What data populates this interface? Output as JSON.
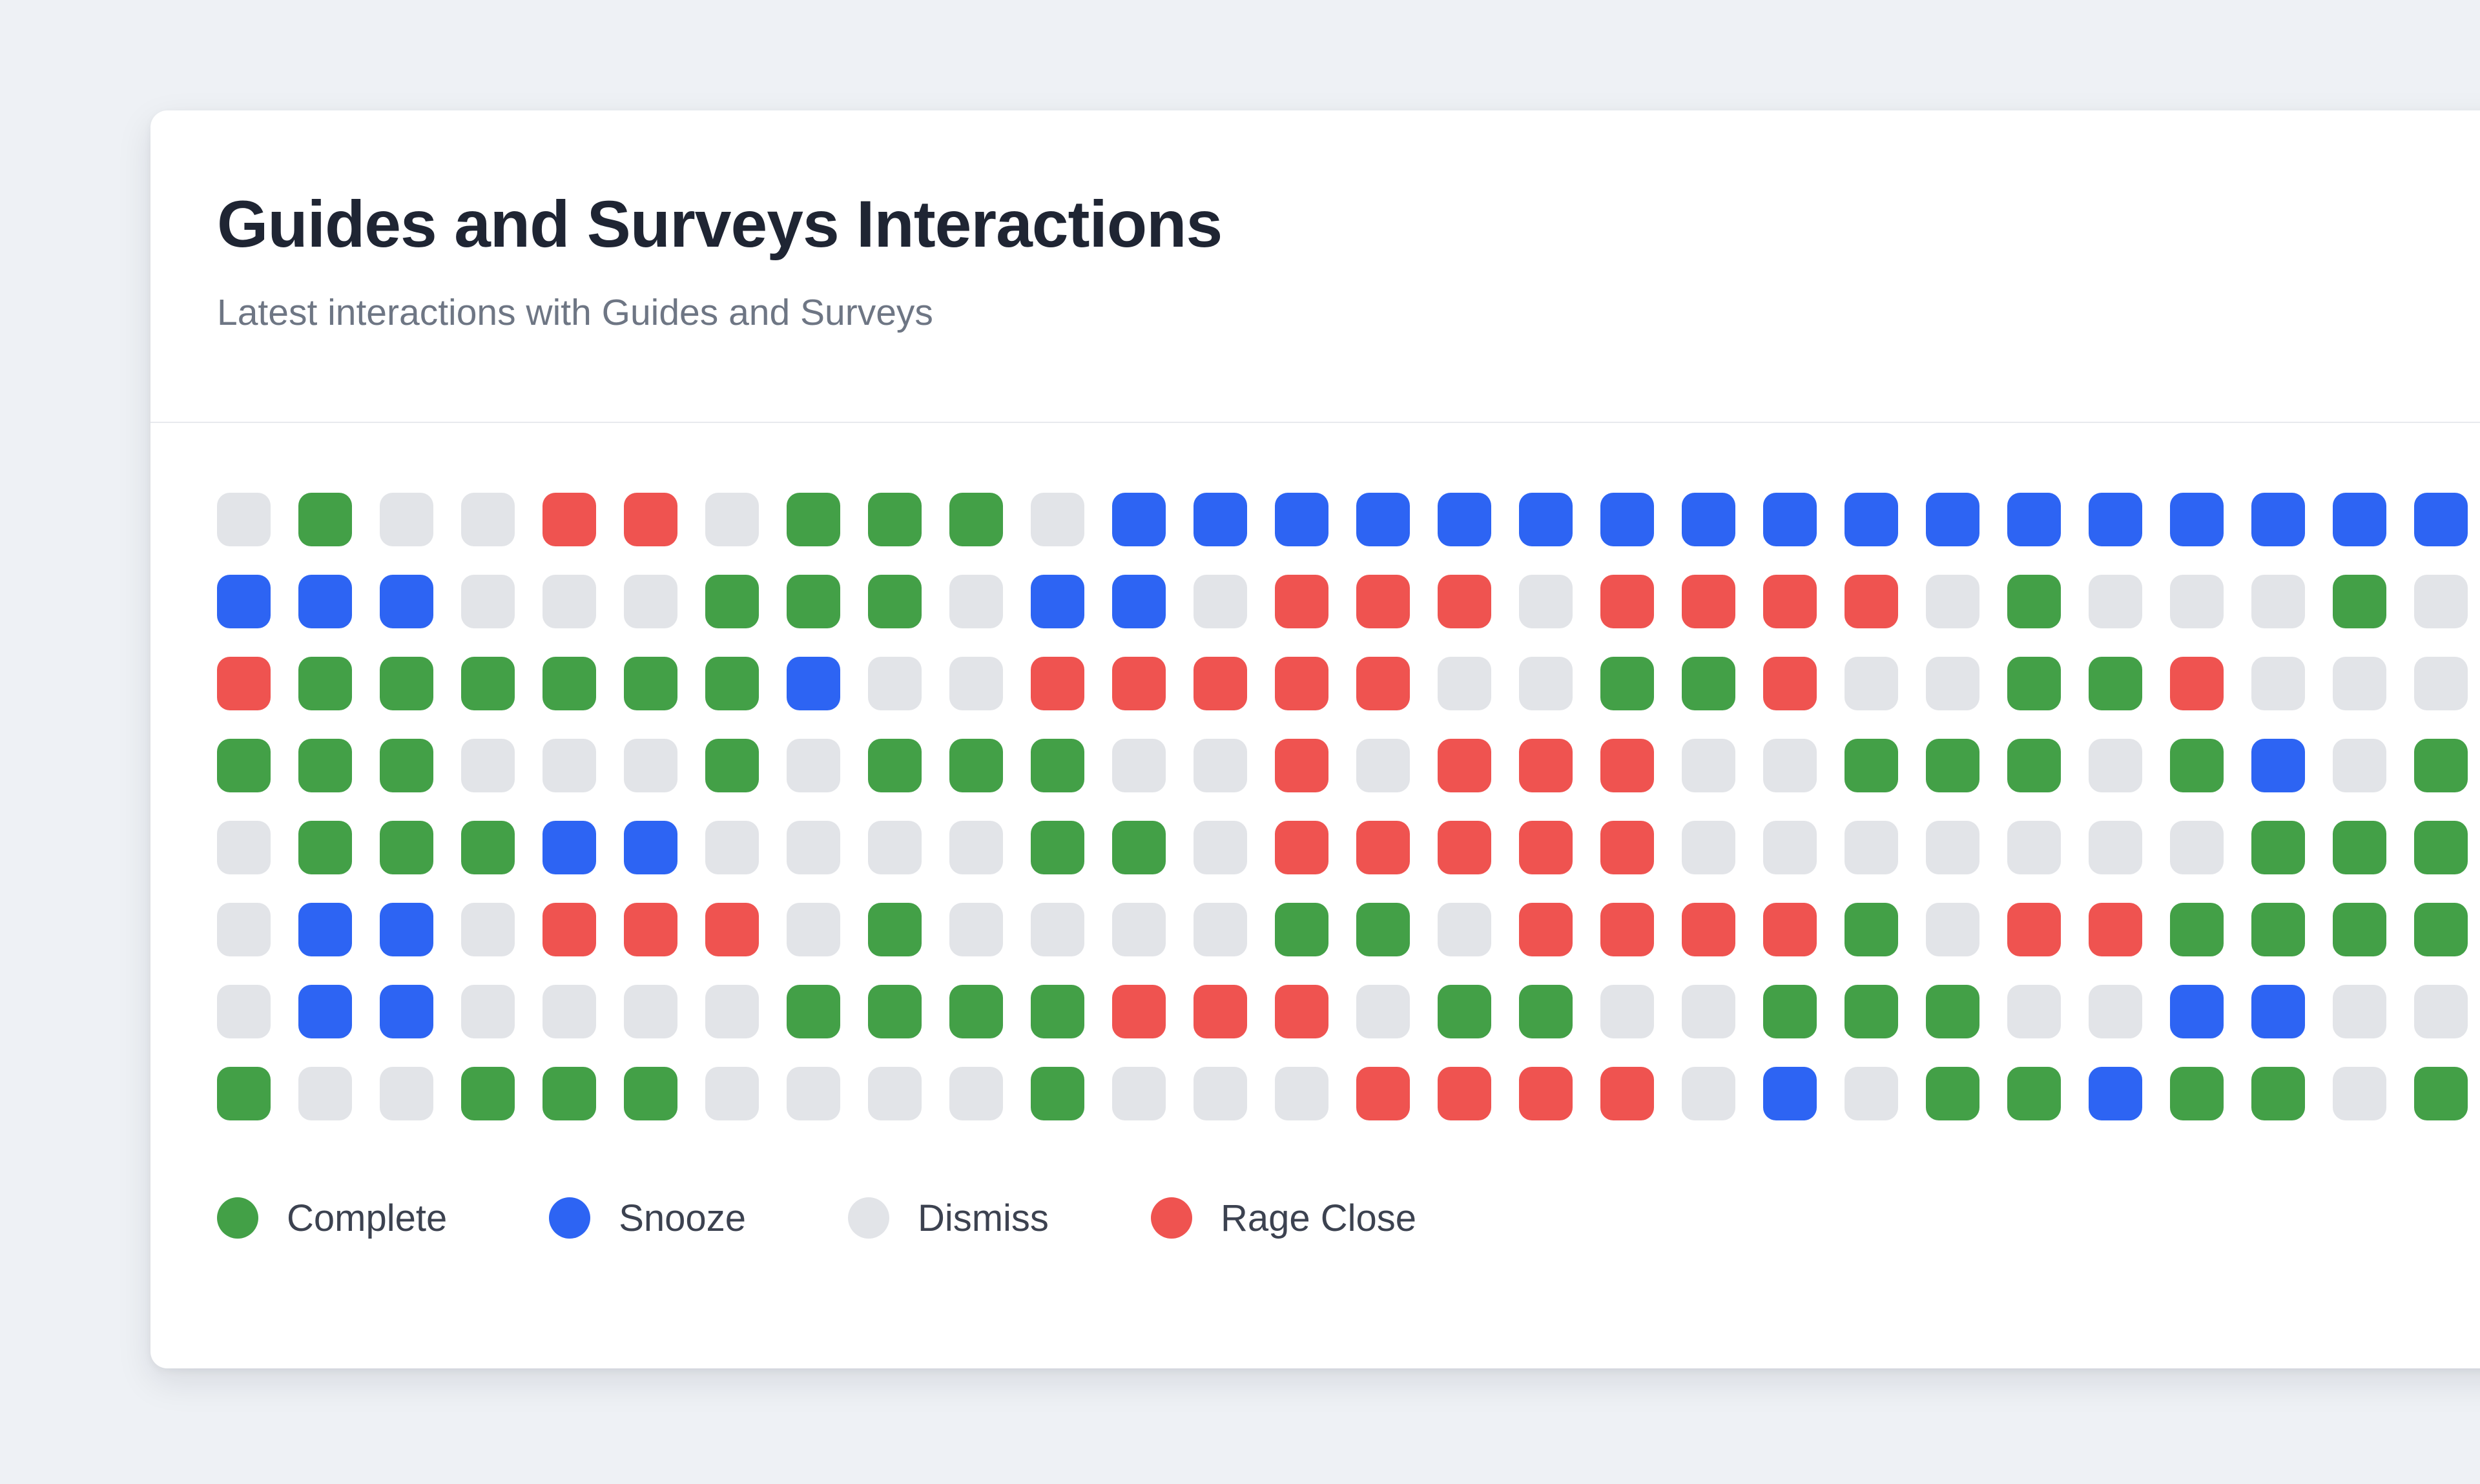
{
  "page": {
    "background_color": "#eef1f5"
  },
  "card": {
    "title": "Guides and Surveys Interactions",
    "subtitle": "Latest interactions with Guides and Surveys",
    "background_color": "#ffffff",
    "divider_color": "#e8eaee"
  },
  "legend": {
    "items": [
      {
        "label": "Complete",
        "code": "C",
        "color": "#43a047"
      },
      {
        "label": "Snooze",
        "code": "S",
        "color": "#2d64f3"
      },
      {
        "label": "Dismiss",
        "code": "D",
        "color": "#e2e4e8"
      },
      {
        "label": "Rage Close",
        "code": "R",
        "color": "#ef5350"
      }
    ]
  },
  "chart_data": {
    "type": "heatmap",
    "title": "Guides and Surveys Interactions",
    "subtitle": "Latest interactions with Guides and Surveys",
    "rows": 8,
    "cols": 28,
    "legend_position": "bottom",
    "cell_codes": {
      "C": "Complete",
      "S": "Snooze",
      "D": "Dismiss",
      "R": "Rage Close"
    },
    "palette": {
      "C": "#43a047",
      "S": "#2d64f3",
      "D": "#e2e4e8",
      "R": "#ef5350"
    },
    "grid_rows": [
      "DCDDRRDCCCDSSSSSSSSSSSSSSSSS",
      "SSSDDDCCCDSSDRRRDRRRRDCDDDCD",
      "RCCCCCCSDDRRRRRDDCCRDDCCRDDD",
      "CCCDDDCDCCCDDRDRRRDDCCCDCSDC",
      "DCCCSSDDDDCCDRRRRRDDDDDDDCCC",
      "DSSDRRRDCDDDDCCDRRRRCDRRCCCC",
      "DSSDDDDCCCCRRRDCCDDCCCDDSSDD",
      "CDDCCCDDDDCDDDRRRRDSDCCSCCDC"
    ]
  }
}
